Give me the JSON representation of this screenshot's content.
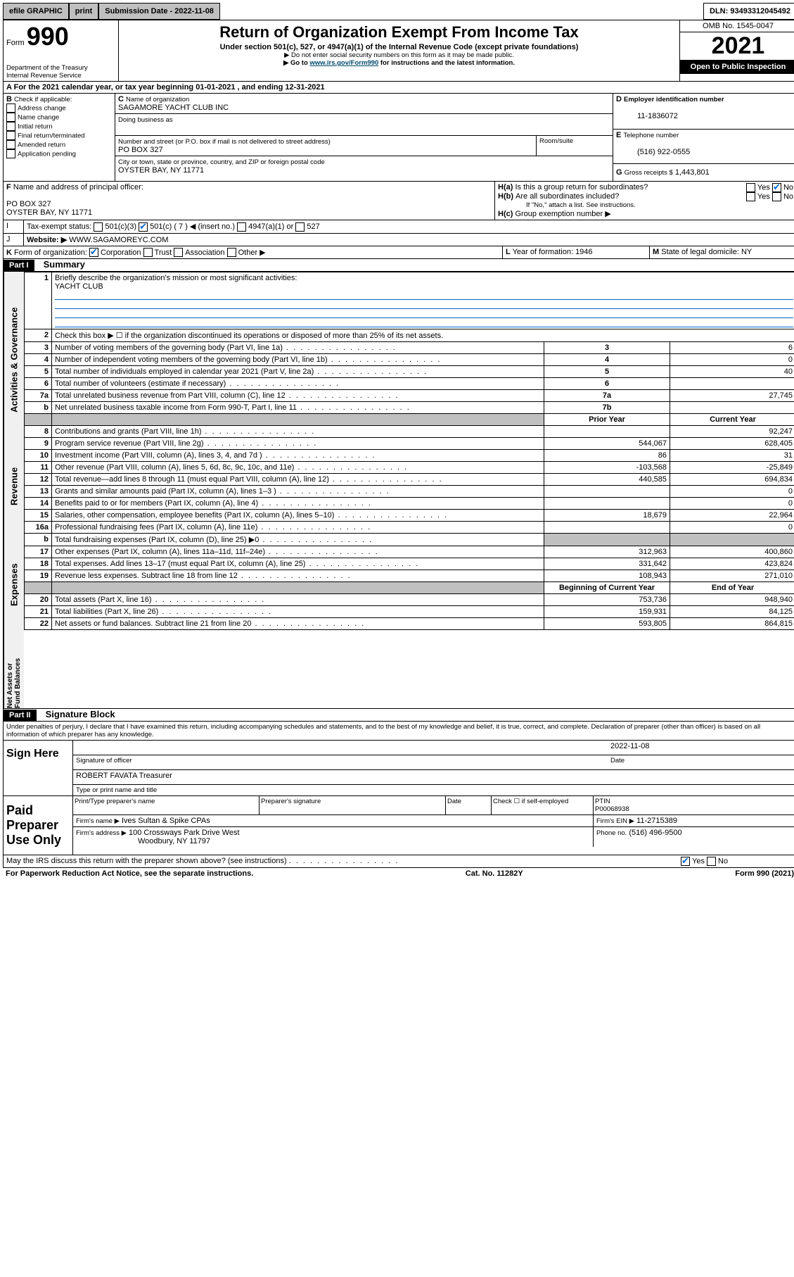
{
  "topbar": {
    "efile": "efile GRAPHIC",
    "print": "print",
    "submission": "Submission Date - 2022-11-08",
    "dln": "DLN: 93493312045492"
  },
  "header": {
    "form_label": "Form",
    "form_no": "990",
    "dept": "Department of the Treasury",
    "irs": "Internal Revenue Service",
    "title": "Return of Organization Exempt From Income Tax",
    "sub1": "Under section 501(c), 527, or 4947(a)(1) of the Internal Revenue Code (except private foundations)",
    "sub2": "▶ Do not enter social security numbers on this form as it may be made public.",
    "sub3_pre": "▶ Go to ",
    "sub3_link": "www.irs.gov/Form990",
    "sub3_post": " for instructions and the latest information.",
    "omb": "OMB No. 1545-0047",
    "year": "2021",
    "open_public": "Open to Public Inspection"
  },
  "A": {
    "label": "For the 2021 calendar year, or tax year beginning ",
    "begin": "01-01-2021",
    "mid": " , and ending ",
    "end": "12-31-2021"
  },
  "B": {
    "label": "Check if applicable:",
    "items": [
      "Address change",
      "Name change",
      "Initial return",
      "Final return/terminated",
      "Amended return",
      "Application pending"
    ]
  },
  "C": {
    "name_label": "Name of organization",
    "name": "SAGAMORE YACHT CLUB INC",
    "dba_label": "Doing business as",
    "addr_label": "Number and street (or P.O. box if mail is not delivered to street address)",
    "room_label": "Room/suite",
    "addr": "PO BOX 327",
    "city_label": "City or town, state or province, country, and ZIP or foreign postal code",
    "city": "OYSTER BAY, NY  11771"
  },
  "D": {
    "label": "Employer identification number",
    "value": "11-1836072"
  },
  "E": {
    "label": "Telephone number",
    "value": "(516) 922-0555"
  },
  "G": {
    "label": "Gross receipts $",
    "value": "1,443,801"
  },
  "F": {
    "label": "Name and address of principal officer:",
    "line1": "PO BOX 327",
    "line2": "OYSTER BAY, NY  11771"
  },
  "H": {
    "a": "Is this a group return for subordinates?",
    "b": "Are all subordinates included?",
    "note": "If \"No,\" attach a list. See instructions.",
    "c": "Group exemption number ▶"
  },
  "I": {
    "label": "Tax-exempt status:",
    "opts": [
      "501(c)(3)",
      "501(c) ( 7 ) ◀ (insert no.)",
      "4947(a)(1) or",
      "527"
    ]
  },
  "J": {
    "label": "Website: ▶",
    "value": "WWW.SAGAMOREYC.COM"
  },
  "K": {
    "label": "Form of organization:",
    "opts": [
      "Corporation",
      "Trust",
      "Association",
      "Other ▶"
    ]
  },
  "L": {
    "label": "Year of formation:",
    "value": "1946"
  },
  "M": {
    "label": "State of legal domicile:",
    "value": "NY"
  },
  "partI": {
    "title": "Part I",
    "heading": "Summary",
    "line1_label": "Briefly describe the organization's mission or most significant activities:",
    "line1_value": "YACHT CLUB",
    "line2": "Check this box ▶ ☐  if the organization discontinued its operations or disposed of more than 25% of its net assets.",
    "rows_governance": [
      {
        "n": "3",
        "label": "Number of voting members of the governing body (Part VI, line 1a)",
        "box": "3",
        "val": "6"
      },
      {
        "n": "4",
        "label": "Number of independent voting members of the governing body (Part VI, line 1b)",
        "box": "4",
        "val": "0"
      },
      {
        "n": "5",
        "label": "Total number of individuals employed in calendar year 2021 (Part V, line 2a)",
        "box": "5",
        "val": "40"
      },
      {
        "n": "6",
        "label": "Total number of volunteers (estimate if necessary)",
        "box": "6",
        "val": ""
      },
      {
        "n": "7a",
        "label": "Total unrelated business revenue from Part VIII, column (C), line 12",
        "box": "7a",
        "val": "27,745"
      },
      {
        "n": "b",
        "label": "Net unrelated business taxable income from Form 990-T, Part I, line 11",
        "box": "7b",
        "val": ""
      }
    ],
    "col_prior": "Prior Year",
    "col_current": "Current Year",
    "rows_revenue": [
      {
        "n": "8",
        "label": "Contributions and grants (Part VIII, line 1h)",
        "prior": "",
        "cur": "92,247"
      },
      {
        "n": "9",
        "label": "Program service revenue (Part VIII, line 2g)",
        "prior": "544,067",
        "cur": "628,405"
      },
      {
        "n": "10",
        "label": "Investment income (Part VIII, column (A), lines 3, 4, and 7d )",
        "prior": "86",
        "cur": "31"
      },
      {
        "n": "11",
        "label": "Other revenue (Part VIII, column (A), lines 5, 6d, 8c, 9c, 10c, and 11e)",
        "prior": "-103,568",
        "cur": "-25,849"
      },
      {
        "n": "12",
        "label": "Total revenue—add lines 8 through 11 (must equal Part VIII, column (A), line 12)",
        "prior": "440,585",
        "cur": "694,834"
      }
    ],
    "rows_expenses": [
      {
        "n": "13",
        "label": "Grants and similar amounts paid (Part IX, column (A), lines 1–3 )",
        "prior": "",
        "cur": "0"
      },
      {
        "n": "14",
        "label": "Benefits paid to or for members (Part IX, column (A), line 4)",
        "prior": "",
        "cur": "0"
      },
      {
        "n": "15",
        "label": "Salaries, other compensation, employee benefits (Part IX, column (A), lines 5–10)",
        "prior": "18,679",
        "cur": "22,964"
      },
      {
        "n": "16a",
        "label": "Professional fundraising fees (Part IX, column (A), line 11e)",
        "prior": "",
        "cur": "0"
      },
      {
        "n": "b",
        "label": "Total fundraising expenses (Part IX, column (D), line 25) ▶0",
        "prior": "shade",
        "cur": "shade"
      },
      {
        "n": "17",
        "label": "Other expenses (Part IX, column (A), lines 11a–11d, 11f–24e)",
        "prior": "312,963",
        "cur": "400,860"
      },
      {
        "n": "18",
        "label": "Total expenses. Add lines 13–17 (must equal Part IX, column (A), line 25)",
        "prior": "331,642",
        "cur": "423,824"
      },
      {
        "n": "19",
        "label": "Revenue less expenses. Subtract line 18 from line 12",
        "prior": "108,943",
        "cur": "271,010"
      }
    ],
    "col_begin": "Beginning of Current Year",
    "col_end": "End of Year",
    "rows_net": [
      {
        "n": "20",
        "label": "Total assets (Part X, line 16)",
        "prior": "753,736",
        "cur": "948,940"
      },
      {
        "n": "21",
        "label": "Total liabilities (Part X, line 26)",
        "prior": "159,931",
        "cur": "84,125"
      },
      {
        "n": "22",
        "label": "Net assets or fund balances. Subtract line 21 from line 20",
        "prior": "593,805",
        "cur": "864,815"
      }
    ],
    "side_labels": {
      "gov": "Activities & Governance",
      "rev": "Revenue",
      "exp": "Expenses",
      "net": "Net Assets or Fund Balances"
    }
  },
  "partII": {
    "title": "Part II",
    "heading": "Signature Block",
    "perjury": "Under penalties of perjury, I declare that I have examined this return, including accompanying schedules and statements, and to the best of my knowledge and belief, it is true, correct, and complete. Declaration of preparer (other than officer) is based on all information of which preparer has any knowledge.",
    "sign_here": "Sign Here",
    "sig_officer": "Signature of officer",
    "date_label": "Date",
    "date": "2022-11-08",
    "officer_name": "ROBERT FAVATA  Treasurer",
    "type_name": "Type or print name and title",
    "paid": "Paid Preparer Use Only",
    "prep_name_label": "Print/Type preparer's name",
    "prep_sig_label": "Preparer's signature",
    "check_self": "Check ☐ if self-employed",
    "ptin_label": "PTIN",
    "ptin": "P00068938",
    "firm_name_label": "Firm's name    ▶",
    "firm_name": "Ives Sultan & Spike CPAs",
    "firm_ein_label": "Firm's EIN ▶",
    "firm_ein": "11-2715389",
    "firm_addr_label": "Firm's address ▶",
    "firm_addr1": "100 Crossways Park Drive West",
    "firm_addr2": "Woodbury, NY  11797",
    "phone_label": "Phone no.",
    "phone": "(516) 496-9500",
    "discuss": "May the IRS discuss this return with the preparer shown above? (see instructions)"
  },
  "footer": {
    "paperwork": "For Paperwork Reduction Act Notice, see the separate instructions.",
    "cat": "Cat. No. 11282Y",
    "form": "Form 990 (2021)"
  }
}
